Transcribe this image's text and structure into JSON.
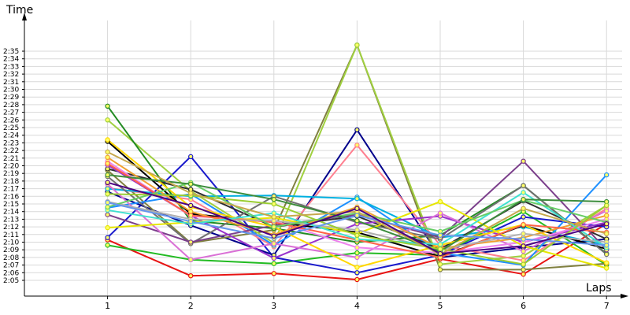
{
  "chart_data": {
    "type": "line",
    "xlabel": "Laps",
    "ylabel": "Time",
    "x": [
      1,
      2,
      3,
      4,
      5,
      6,
      7
    ],
    "xlim": [
      0,
      7.2
    ],
    "ylim_seconds": [
      123,
      156
    ],
    "y_ticks": [
      "2:05",
      "2:06",
      "2:07",
      "2:08",
      "2:09",
      "2:10",
      "2:11",
      "2:12",
      "2:13",
      "2:14",
      "2:15",
      "2:16",
      "2:17",
      "2:18",
      "2:19",
      "2:20",
      "2:21",
      "2:22",
      "2:23",
      "2:24",
      "2:25",
      "2:26",
      "2:27",
      "2:28",
      "2:29",
      "2:30",
      "2:31",
      "2:32",
      "2:33",
      "2:34",
      "2:35"
    ],
    "grid": "horizontal",
    "marker": "circle",
    "series": [
      {
        "color": "#e81414",
        "values": [
          "2:10.3",
          "2:05.6",
          "2:05.9",
          "2:05.1",
          "2:07.8",
          "2:05.8",
          "2:12.4"
        ]
      },
      {
        "color": "#22bb22",
        "values": [
          "2:09.6",
          "2:07.7",
          "2:07.2",
          "2:08.6",
          "2:08.3",
          "2:14.0",
          "2:07.0"
        ]
      },
      {
        "color": "#1a1acc",
        "values": [
          "2:10.6",
          "2:21.2",
          "2:08.0",
          "2:06.0",
          "2:08.3",
          "2:13.3",
          "2:12.0"
        ]
      },
      {
        "color": "#00008b",
        "values": [
          "2:16.6",
          "2:12.2",
          "2:08.3",
          "2:24.7",
          "2:08.0",
          "2:09.3",
          "2:10.4"
        ]
      },
      {
        "color": "#808040",
        "values": [
          "2:19.4",
          "2:09.9",
          "2:11.6",
          "2:35.8",
          "2:06.4",
          "2:06.4",
          "2:07.2"
        ]
      },
      {
        "color": "#a0d040",
        "values": [
          "2:26.0",
          "2:16.7",
          "2:09.9",
          "2:35.8",
          "2:07.1",
          "2:08.2",
          "2:14.8"
        ]
      },
      {
        "color": "#ff8090",
        "values": [
          "2:17.1",
          "2:15.6",
          "2:09.4",
          "2:22.7",
          "2:09.6",
          "2:07.6",
          "2:14.4"
        ]
      },
      {
        "color": "#1e90ff",
        "values": [
          "2:14.5",
          "2:16.3",
          "2:09.6",
          "2:15.9",
          "2:08.6",
          "2:07.0",
          "2:18.8"
        ]
      },
      {
        "color": "#00b0e0",
        "values": [
          "2:17.0",
          "2:16.0",
          "2:16.1",
          "2:15.7",
          "2:10.6",
          "2:12.0",
          "2:09.6"
        ]
      },
      {
        "color": "#228b22",
        "values": [
          "2:27.8",
          "2:12.8",
          "2:11.8",
          "2:10.0",
          "2:10.9",
          "2:17.4",
          "2:08.5"
        ]
      },
      {
        "color": "#000000",
        "values": [
          "2:23.2",
          "2:13.7",
          "2:12.6",
          "2:11.3",
          "2:08.1",
          "2:12.2",
          "2:09.1"
        ]
      },
      {
        "color": "#2f2f2f",
        "values": [
          "2:19.6",
          "2:16.9",
          "2:12.0",
          "2:13.4",
          "2:09.1",
          "2:15.4",
          "2:10.4"
        ]
      },
      {
        "color": "#707070",
        "values": [
          "2:18.6",
          "2:09.8",
          "2:16.0",
          "2:12.6",
          "2:10.4",
          "2:17.4",
          "2:08.4"
        ]
      },
      {
        "color": "#7b3f8b",
        "values": [
          "2:13.6",
          "2:10.0",
          "2:12.2",
          "2:13.6",
          "2:10.6",
          "2:20.6",
          "2:09.0"
        ]
      },
      {
        "color": "#9932cc",
        "values": [
          "2:20.1",
          "2:13.5",
          "2:07.9",
          "2:12.4",
          "2:13.4",
          "2:10.0",
          "2:12.6"
        ]
      },
      {
        "color": "#da70d6",
        "values": [
          "2:17.6",
          "2:07.7",
          "2:09.8",
          "2:08.0",
          "2:13.8",
          "2:08.8",
          "2:14.1"
        ]
      },
      {
        "color": "#ee82ee",
        "values": [
          "2:20.6",
          "2:13.4",
          "2:12.8",
          "2:09.3",
          "2:08.6",
          "2:10.0",
          "2:13.0"
        ]
      },
      {
        "color": "#e6e600",
        "values": [
          "2:11.9",
          "2:12.6",
          "2:13.2",
          "2:11.1",
          "2:15.3",
          "2:09.5",
          "2:06.6"
        ]
      },
      {
        "color": "#ffd700",
        "values": [
          "2:23.4",
          "2:14.6",
          "2:12.0",
          "2:06.7",
          "2:09.6",
          "2:12.3",
          "2:07.3"
        ]
      },
      {
        "color": "#f0a030",
        "values": [
          "2:21.1",
          "2:14.0",
          "2:11.0",
          "2:14.6",
          "2:09.2",
          "2:10.6",
          "2:13.5"
        ]
      },
      {
        "color": "#ff6347",
        "values": [
          "2:20.3",
          "2:13.5",
          "2:12.6",
          "2:10.3",
          "2:08.0",
          "2:12.3",
          "2:11.3"
        ]
      },
      {
        "color": "#b0b0b0",
        "values": [
          "2:15.3",
          "2:13.0",
          "2:12.8",
          "2:11.6",
          "2:09.0",
          "2:11.1",
          "2:10.0"
        ]
      },
      {
        "color": "#40e0d0",
        "values": [
          "2:14.2",
          "2:12.4",
          "2:13.8",
          "2:10.4",
          "2:09.7",
          "2:16.5",
          "2:09.3"
        ]
      },
      {
        "color": "#66cd66",
        "values": [
          "2:14.6",
          "2:17.8",
          "2:12.0",
          "2:13.8",
          "2:11.4",
          "2:15.5",
          "2:12.6"
        ]
      },
      {
        "color": "#3c8c3c",
        "values": [
          "2:18.8",
          "2:17.6",
          "2:15.6",
          "2:12.8",
          "2:08.8",
          "2:15.6",
          "2:15.3"
        ]
      },
      {
        "color": "#9acd32",
        "values": [
          "2:16.3",
          "2:16.1",
          "2:15.0",
          "2:10.9",
          "2:09.1",
          "2:07.1",
          "2:14.8"
        ]
      },
      {
        "color": "#c6a84c",
        "values": [
          "2:21.8",
          "2:16.4",
          "2:13.3",
          "2:14.0",
          "2:08.4",
          "2:14.4",
          "2:11.1"
        ]
      },
      {
        "color": "#6495ed",
        "values": [
          "2:15.2",
          "2:12.7",
          "2:10.5",
          "2:13.5",
          "2:10.9",
          "2:10.4",
          "2:09.6"
        ]
      },
      {
        "color": "#4b0082",
        "values": [
          "2:17.8",
          "2:14.8",
          "2:10.8",
          "2:14.4",
          "2:08.5",
          "2:09.5",
          "2:12.4"
        ]
      }
    ]
  }
}
